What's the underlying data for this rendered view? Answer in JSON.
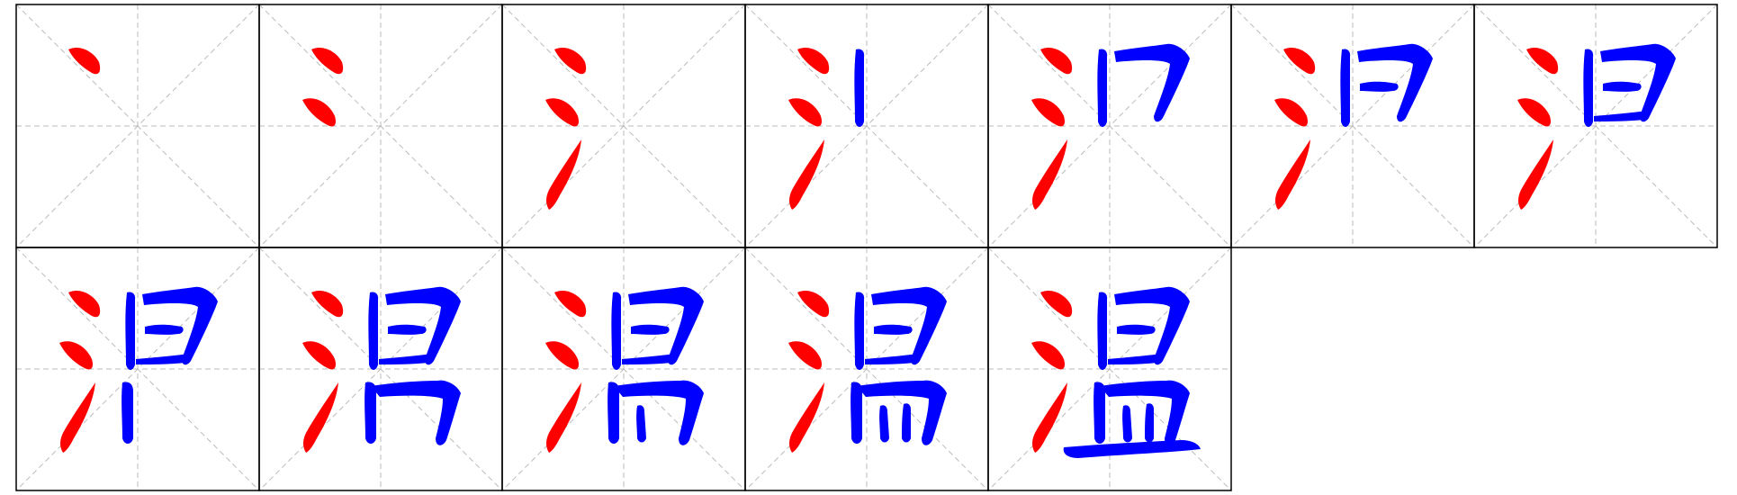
{
  "character": "温",
  "colors": {
    "radical": "#ff0000",
    "component": "#0000ff",
    "border": "#000000",
    "guide": "#bbbbbb",
    "background": "#ffffff"
  },
  "grid": {
    "rows": 2,
    "columns": 7,
    "step_count": 12
  },
  "strokes": [
    {
      "number": 1,
      "part": "radical"
    },
    {
      "number": 2,
      "part": "radical"
    },
    {
      "number": 3,
      "part": "radical"
    },
    {
      "number": 4,
      "part": "component"
    },
    {
      "number": 5,
      "part": "component"
    },
    {
      "number": 6,
      "part": "component"
    },
    {
      "number": 7,
      "part": "component"
    },
    {
      "number": 8,
      "part": "component"
    },
    {
      "number": 9,
      "part": "component"
    },
    {
      "number": 10,
      "part": "component"
    },
    {
      "number": 11,
      "part": "component"
    },
    {
      "number": 12,
      "part": "component"
    }
  ],
  "steps": [
    1,
    2,
    3,
    4,
    5,
    6,
    7,
    8,
    9,
    10,
    11,
    12
  ]
}
